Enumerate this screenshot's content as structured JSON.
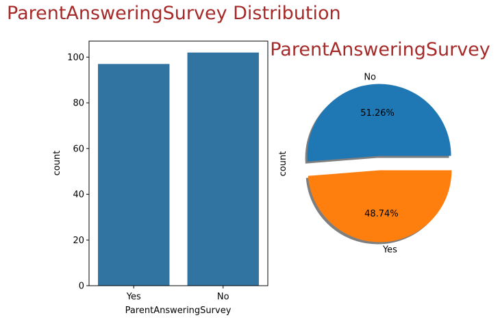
{
  "figure": {
    "suptitle": "ParentAnsweringSurvey Distribution",
    "title_color": "#a52a2a"
  },
  "chart_data": [
    {
      "type": "bar",
      "categories": [
        "Yes",
        "No"
      ],
      "values": [
        97,
        102
      ],
      "xlabel": "ParentAnsweringSurvey",
      "ylabel": "count",
      "ylim": [
        0,
        107
      ],
      "yticks": [
        0,
        20,
        40,
        60,
        80,
        100
      ],
      "color": "#3274a1",
      "grid": false
    },
    {
      "type": "pie",
      "title": "ParentAnsweringSurvey",
      "ylabel": "count",
      "labels": [
        "No",
        "Yes"
      ],
      "values": [
        102,
        97
      ],
      "percent_labels": [
        "51.26%",
        "48.74%"
      ],
      "colors": [
        "#1f77b4",
        "#ff7f0e"
      ],
      "exploded": true,
      "shadow": true
    }
  ]
}
